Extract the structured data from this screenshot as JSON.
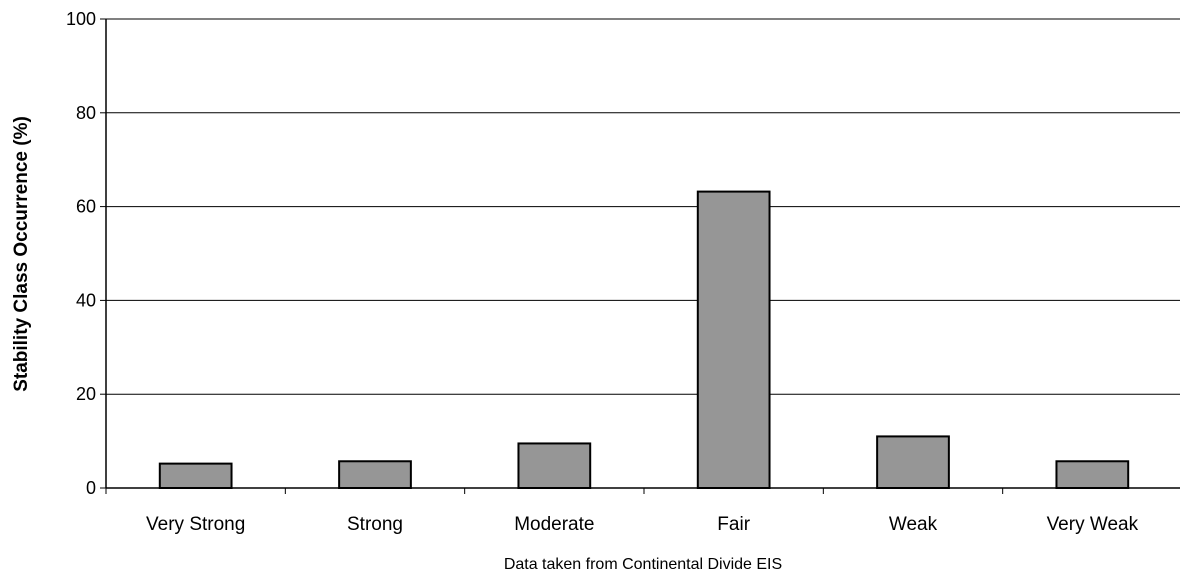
{
  "chart_data": {
    "type": "bar",
    "title": "",
    "xlabel": "Data taken from Continental Divide EIS",
    "ylabel": "Stability Class Occurrence  (%)",
    "categories": [
      "Very Strong",
      "Strong",
      "Moderate",
      "Fair",
      "Weak",
      "Very Weak"
    ],
    "values": [
      5.2,
      5.7,
      9.5,
      63.2,
      11.0,
      5.7
    ],
    "ylim": [
      0,
      100
    ],
    "yticks": [
      0,
      20,
      40,
      60,
      80,
      100
    ],
    "grid": true,
    "legend": "none",
    "bar_color": "#969696",
    "bar_edge_color": "#000000"
  }
}
